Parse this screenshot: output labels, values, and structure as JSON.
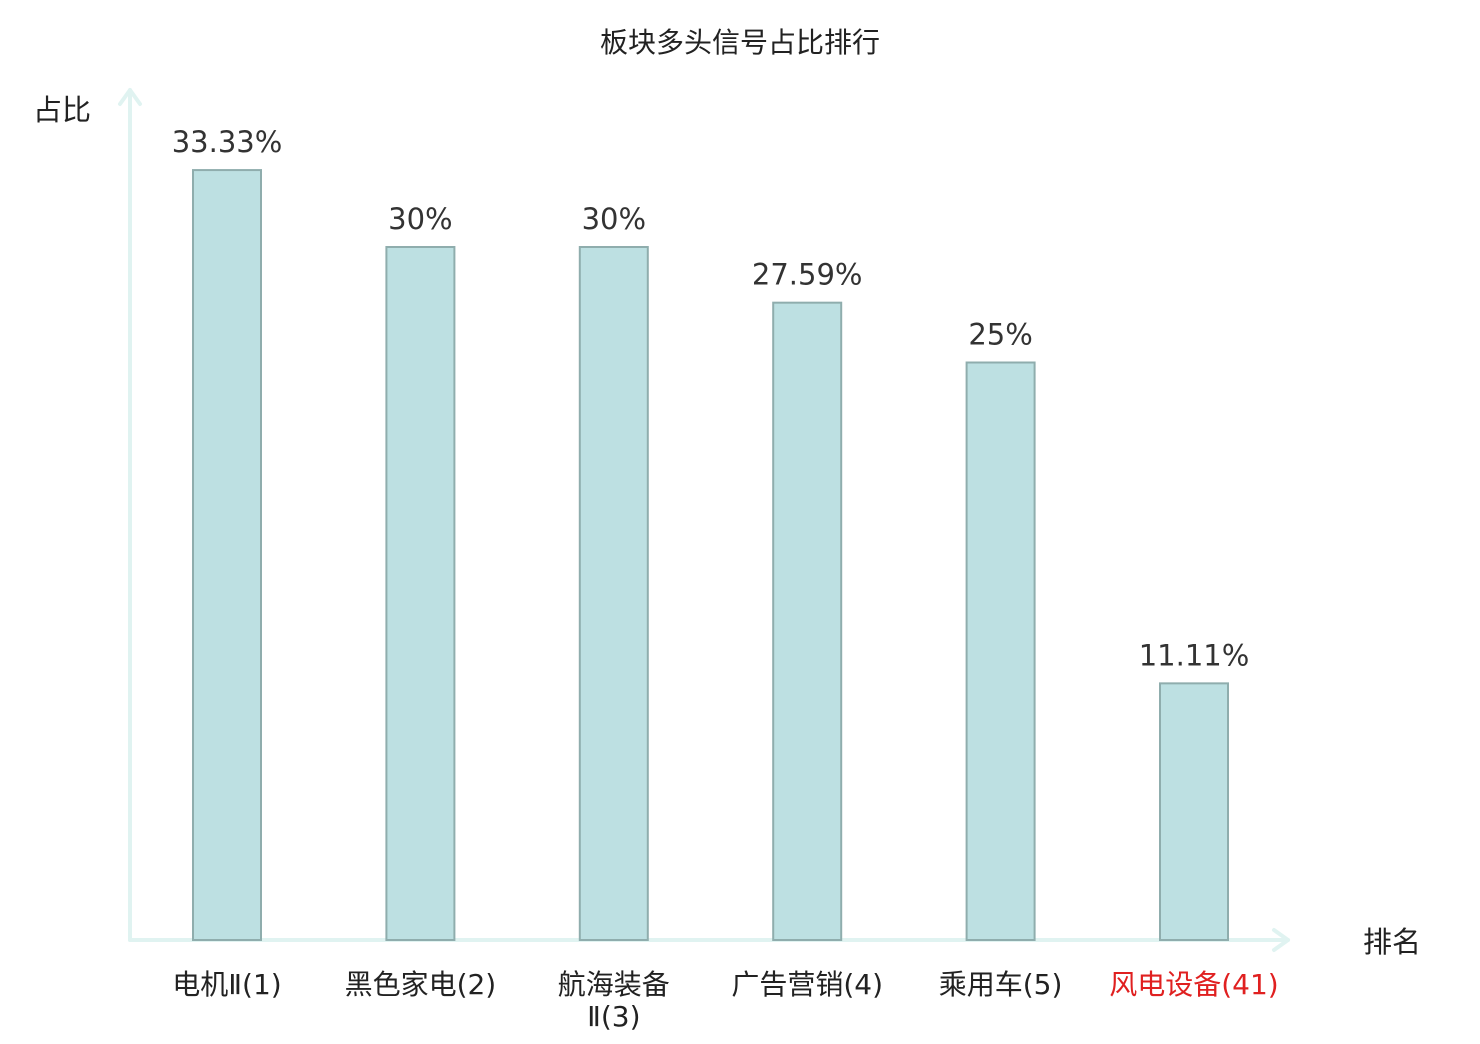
{
  "chart_data": {
    "type": "bar",
    "title": "板块多头信号占比排行",
    "ylabel": "占比",
    "xlabel": "排名",
    "categories": [
      [
        "电机Ⅱ(1)"
      ],
      [
        "黑色家电(2)"
      ],
      [
        "航海装备",
        "Ⅱ(3)"
      ],
      [
        "广告营销(4)"
      ],
      [
        "乘用车(5)"
      ],
      [
        "风电设备(41)"
      ]
    ],
    "values": [
      33.33,
      30,
      30,
      27.59,
      25,
      11.11
    ],
    "value_labels": [
      "33.33%",
      "30%",
      "30%",
      "27.59%",
      "25%",
      "11.11%"
    ],
    "highlight_index": 5,
    "ylim": [
      0,
      35
    ],
    "grid": false,
    "colors": {
      "bar_fill": "#bde0e2",
      "bar_stroke": "#8fadad",
      "axis": "#e0f3f1",
      "text": "#333333",
      "highlight_text": "#e02020"
    }
  }
}
